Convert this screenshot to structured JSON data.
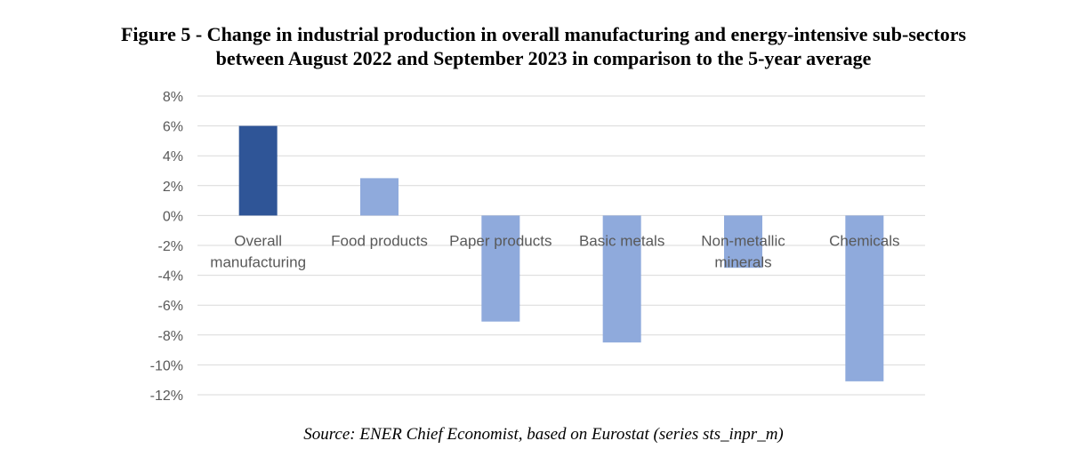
{
  "figure": {
    "title_line1": "Figure 5 - Change in industrial production in overall manufacturing and energy-intensive sub-sectors",
    "title_line2": "between August 2022 and September 2023 in comparison to the 5-year average",
    "source": "Source: ENER Chief Economist, based on Eurostat (series sts_inpr_m)"
  },
  "chart_data": {
    "type": "bar",
    "categories": [
      "Overall manufacturing",
      "Food products",
      "Paper products",
      "Basic metals",
      "Non-metallic minerals",
      "Chemicals"
    ],
    "category_lines": [
      [
        "Overall",
        "manufacturing"
      ],
      [
        "Food products"
      ],
      [
        "Paper products"
      ],
      [
        "Basic metals"
      ],
      [
        "Non-metallic",
        "minerals"
      ],
      [
        "Chemicals"
      ]
    ],
    "values": [
      6.0,
      2.5,
      -7.1,
      -8.5,
      -3.5,
      -11.1
    ],
    "ylim": [
      -12,
      8
    ],
    "ytick_step": 2,
    "ytick_labels": [
      "8%",
      "6%",
      "4%",
      "2%",
      "0%",
      "-2%",
      "-4%",
      "-6%",
      "-8%",
      "-10%",
      "-12%"
    ],
    "grid": true,
    "colors": {
      "highlight": "#2F5597",
      "bar": "#8FAADC",
      "grid": "#D9D9D9",
      "tick_label": "#595959"
    },
    "highlight_index": 0
  }
}
